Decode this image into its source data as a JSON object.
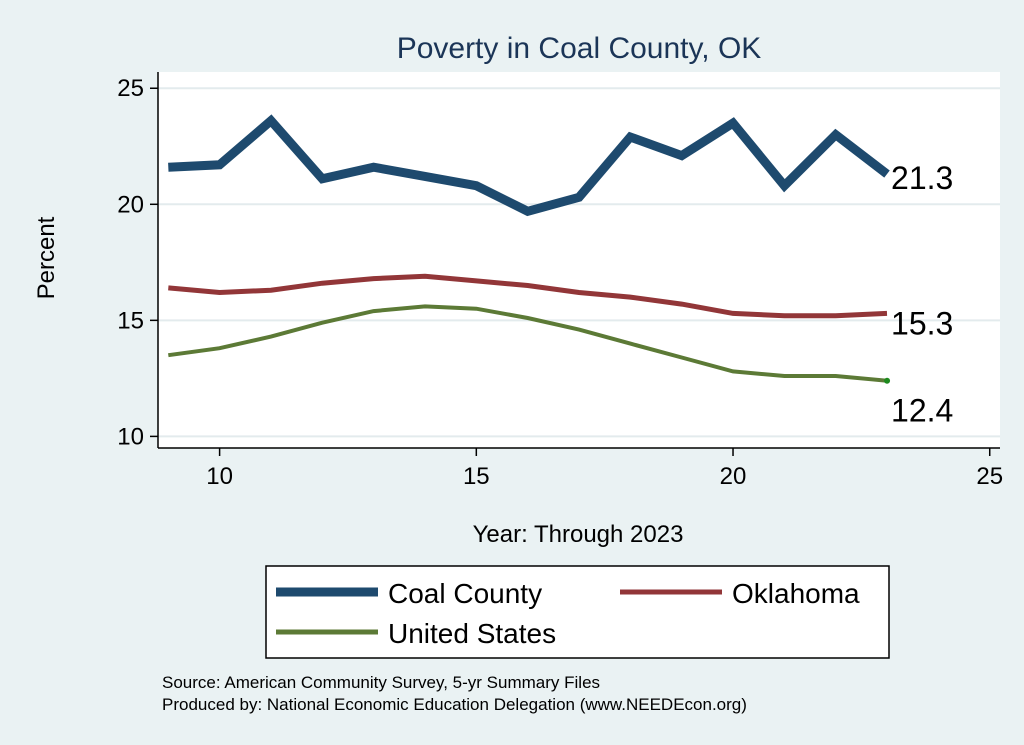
{
  "chart_data": {
    "type": "line",
    "title": "Poverty in Coal County, OK",
    "xlabel": "Year: Through 2023",
    "ylabel": "Percent",
    "xlim": [
      8.8,
      25.2
    ],
    "ylim": [
      9.5,
      25.7
    ],
    "xticks": [
      "10",
      "15",
      "20",
      "25"
    ],
    "yticks": [
      "10",
      "15",
      "20",
      "25"
    ],
    "x": [
      9,
      10,
      11,
      12,
      13,
      14,
      15,
      16,
      17,
      18,
      19,
      20,
      21,
      22,
      23
    ],
    "series": [
      {
        "name": "Coal County",
        "color": "#1e4a6e",
        "values": [
          21.6,
          21.7,
          23.6,
          21.1,
          21.6,
          21.2,
          20.8,
          19.7,
          20.3,
          22.9,
          22.1,
          23.5,
          20.8,
          23.0,
          21.3
        ],
        "end_label": "21.3"
      },
      {
        "name": "Oklahoma",
        "color": "#923638",
        "values": [
          16.4,
          16.2,
          16.3,
          16.6,
          16.8,
          16.9,
          16.7,
          16.5,
          16.2,
          16.0,
          15.7,
          15.3,
          15.2,
          15.2,
          15.3
        ],
        "end_label": "15.3"
      },
      {
        "name": "United States",
        "color": "#5c7a36",
        "values": [
          13.5,
          13.8,
          14.3,
          14.9,
          15.4,
          15.6,
          15.5,
          15.1,
          14.6,
          14.0,
          13.4,
          12.8,
          12.6,
          12.6,
          12.4
        ],
        "end_label": "12.4"
      }
    ],
    "legend": {
      "position": "bottom"
    },
    "grid": true
  },
  "source_line": "Source: American Community Survey, 5-yr Summary Files",
  "produced_line": "Produced by: National Economic Education Delegation (www.NEEDEcon.org)"
}
